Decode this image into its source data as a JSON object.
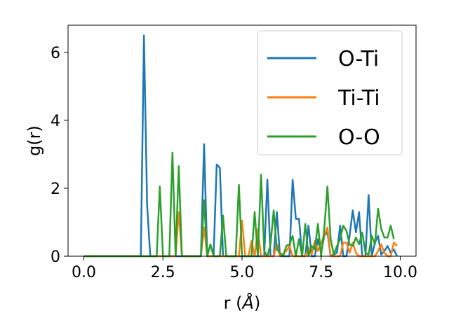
{
  "chart_data": {
    "type": "line",
    "xlabel": "r (",
    "xlabel_unit": "Å",
    "xlabel_close": ")",
    "ylabel": "g(r)",
    "xlim": [
      -0.5,
      10.5
    ],
    "ylim": [
      0,
      6.8
    ],
    "xticks": [
      0.0,
      2.5,
      5.0,
      7.5,
      10.0
    ],
    "xtick_labels": [
      "0.0",
      "2.5",
      "5.0",
      "7.5",
      "10.0"
    ],
    "yticks": [
      0,
      2,
      4,
      6
    ],
    "ytick_labels": [
      "0",
      "2",
      "4",
      "6"
    ],
    "grid": false,
    "legend_position": "top-right",
    "series": [
      {
        "name": "O-Ti",
        "color": "#1f77b4",
        "points": [
          [
            0.0,
            0
          ],
          [
            1.8,
            0
          ],
          [
            1.9,
            6.5
          ],
          [
            2.0,
            1.5
          ],
          [
            2.1,
            0
          ],
          [
            3.7,
            0
          ],
          [
            3.8,
            3.3
          ],
          [
            3.9,
            0
          ],
          [
            4.1,
            0
          ],
          [
            4.2,
            2.7
          ],
          [
            4.3,
            2.6
          ],
          [
            4.4,
            0
          ],
          [
            5.7,
            0
          ],
          [
            5.8,
            2.25
          ],
          [
            5.9,
            0
          ],
          [
            6.0,
            0
          ],
          [
            6.1,
            1.3
          ],
          [
            6.2,
            0
          ],
          [
            6.5,
            0
          ],
          [
            6.6,
            2.25
          ],
          [
            6.7,
            1.1
          ],
          [
            6.8,
            1.1
          ],
          [
            6.9,
            0
          ],
          [
            7.0,
            0
          ],
          [
            7.1,
            0.9
          ],
          [
            7.2,
            0
          ],
          [
            7.3,
            0
          ],
          [
            7.4,
            0.5
          ],
          [
            7.5,
            0.1
          ],
          [
            7.6,
            0.6
          ],
          [
            7.7,
            0.7
          ],
          [
            7.8,
            0
          ],
          [
            8.0,
            0.1
          ],
          [
            8.1,
            0.9
          ],
          [
            8.2,
            0
          ],
          [
            8.3,
            0
          ],
          [
            8.4,
            0.6
          ],
          [
            8.5,
            1.35
          ],
          [
            8.6,
            0.7
          ],
          [
            8.7,
            1.3
          ],
          [
            8.8,
            0
          ],
          [
            8.9,
            0
          ],
          [
            9.0,
            1.8
          ],
          [
            9.1,
            0
          ],
          [
            9.2,
            0.4
          ],
          [
            9.3,
            0.6
          ],
          [
            9.4,
            0.05
          ],
          [
            9.5,
            0.15
          ],
          [
            9.6,
            0.3
          ],
          [
            9.7,
            0.1
          ],
          [
            9.8,
            0.2
          ],
          [
            9.9,
            0
          ]
        ]
      },
      {
        "name": "Ti-Ti",
        "color": "#ff7f0e",
        "points": [
          [
            0.0,
            0
          ],
          [
            2.9,
            0
          ],
          [
            3.0,
            1.3
          ],
          [
            3.1,
            0
          ],
          [
            3.7,
            0
          ],
          [
            3.8,
            0.85
          ],
          [
            3.9,
            0
          ],
          [
            4.9,
            0
          ],
          [
            5.0,
            1.05
          ],
          [
            5.1,
            0
          ],
          [
            5.2,
            0
          ],
          [
            5.3,
            0.45
          ],
          [
            5.4,
            0
          ],
          [
            5.5,
            0.8
          ],
          [
            5.6,
            0
          ],
          [
            6.0,
            0
          ],
          [
            6.1,
            0.35
          ],
          [
            6.2,
            0
          ],
          [
            6.4,
            0.15
          ],
          [
            6.5,
            0.3
          ],
          [
            6.6,
            0
          ],
          [
            7.0,
            0
          ],
          [
            7.1,
            0.25
          ],
          [
            7.2,
            0.05
          ],
          [
            7.3,
            0.45
          ],
          [
            7.4,
            0.15
          ],
          [
            7.5,
            0.4
          ],
          [
            7.6,
            0.6
          ],
          [
            7.7,
            0.85
          ],
          [
            7.8,
            0
          ],
          [
            8.0,
            0
          ],
          [
            8.1,
            0
          ],
          [
            8.2,
            0.4
          ],
          [
            8.3,
            0.4
          ],
          [
            8.4,
            0.1
          ],
          [
            8.5,
            0.4
          ],
          [
            8.6,
            0.1
          ],
          [
            8.7,
            0
          ],
          [
            9.2,
            0
          ],
          [
            9.3,
            0.15
          ],
          [
            9.4,
            0.35
          ],
          [
            9.5,
            0.1
          ],
          [
            9.6,
            0
          ],
          [
            9.7,
            0
          ],
          [
            9.8,
            0.4
          ],
          [
            9.9,
            0.3
          ]
        ]
      },
      {
        "name": "O-O",
        "color": "#2ca02c",
        "points": [
          [
            0.0,
            0
          ],
          [
            2.3,
            0
          ],
          [
            2.4,
            2.05
          ],
          [
            2.5,
            0
          ],
          [
            2.7,
            0
          ],
          [
            2.8,
            3.05
          ],
          [
            2.9,
            0
          ],
          [
            3.0,
            2.65
          ],
          [
            3.1,
            0
          ],
          [
            3.7,
            0
          ],
          [
            3.8,
            1.65
          ],
          [
            3.9,
            0
          ],
          [
            4.0,
            0.35
          ],
          [
            4.1,
            0
          ],
          [
            4.3,
            0
          ],
          [
            4.4,
            1.2
          ],
          [
            4.5,
            0
          ],
          [
            4.8,
            0
          ],
          [
            4.9,
            2.1
          ],
          [
            5.0,
            0
          ],
          [
            5.3,
            0
          ],
          [
            5.4,
            1.3
          ],
          [
            5.5,
            0
          ],
          [
            5.6,
            2.4
          ],
          [
            5.7,
            0.15
          ],
          [
            5.8,
            0
          ],
          [
            5.9,
            0.35
          ],
          [
            6.0,
            1.35
          ],
          [
            6.1,
            0.2
          ],
          [
            6.3,
            0
          ],
          [
            6.4,
            0.3
          ],
          [
            6.5,
            0.35
          ],
          [
            6.6,
            0.6
          ],
          [
            6.7,
            0
          ],
          [
            6.8,
            0.5
          ],
          [
            6.9,
            0
          ],
          [
            7.0,
            0.95
          ],
          [
            7.1,
            0
          ],
          [
            7.2,
            0.3
          ],
          [
            7.3,
            0.2
          ],
          [
            7.4,
            0.95
          ],
          [
            7.5,
            0
          ],
          [
            7.6,
            0.8
          ],
          [
            7.7,
            2.05
          ],
          [
            7.8,
            0.5
          ],
          [
            7.9,
            0.05
          ],
          [
            8.0,
            0.3
          ],
          [
            8.1,
            0.5
          ],
          [
            8.2,
            0.9
          ],
          [
            8.3,
            0.75
          ],
          [
            8.4,
            0.35
          ],
          [
            8.5,
            0.3
          ],
          [
            8.6,
            0.55
          ],
          [
            8.7,
            0.35
          ],
          [
            8.8,
            0.7
          ],
          [
            8.9,
            0.1
          ],
          [
            9.0,
            0.05
          ],
          [
            9.1,
            0.6
          ],
          [
            9.2,
            0.35
          ],
          [
            9.3,
            1.4
          ],
          [
            9.4,
            0.8
          ],
          [
            9.5,
            0.55
          ],
          [
            9.6,
            0.55
          ],
          [
            9.7,
            0.9
          ],
          [
            9.8,
            0.5
          ]
        ]
      }
    ]
  }
}
